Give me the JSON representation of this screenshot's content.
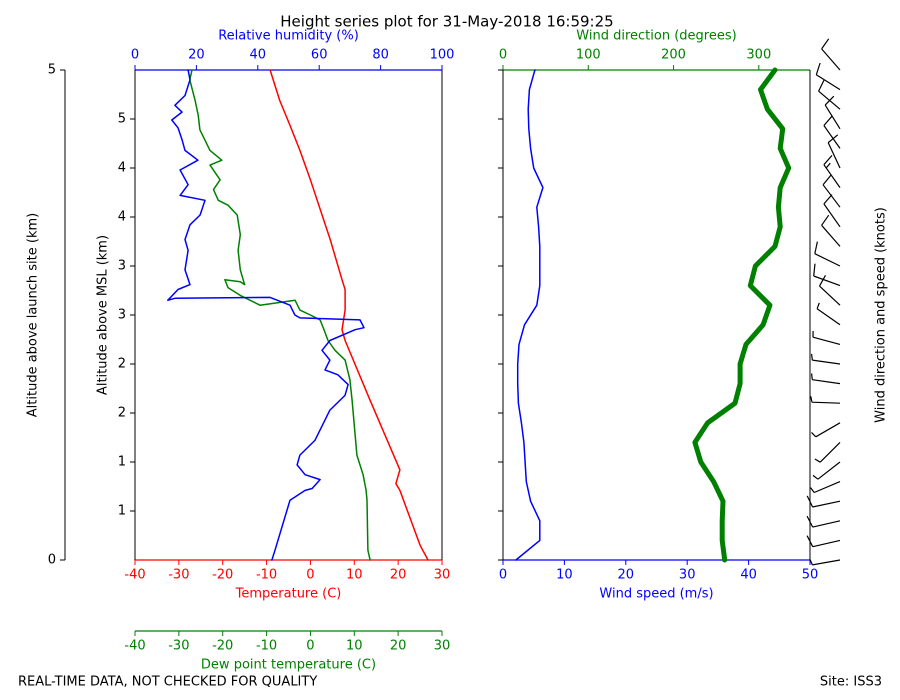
{
  "title": "Height series plot for 31-May-2018 16:59:25",
  "footer_left": "REAL-TIME DATA, NOT CHECKED FOR QUALITY",
  "footer_right": "Site: ISS3",
  "chart_data": [
    {
      "type": "line",
      "ylabel_outer": "Altitude above launch site (km)",
      "ylim": [
        0,
        5
      ],
      "yticks": [
        0,
        5
      ],
      "ylabel": "Altitude above MSL (km)",
      "msl_yticks": [
        {
          "value": 0.5,
          "label": "1"
        },
        {
          "value": 1,
          "label": "1"
        },
        {
          "value": 1.5,
          "label": "2"
        },
        {
          "value": 2,
          "label": "2"
        },
        {
          "value": 2.5,
          "label": "3"
        },
        {
          "value": 3,
          "label": "3"
        },
        {
          "value": 3.5,
          "label": "4"
        },
        {
          "value": 4,
          "label": "4"
        },
        {
          "value": 4.5,
          "label": "5"
        }
      ],
      "xlabel": "Temperature (C)",
      "xlim": [
        -40,
        30
      ],
      "xticks": [
        -40,
        -30,
        -20,
        -10,
        0,
        10,
        20,
        30
      ],
      "xcolor": "#ff0000",
      "x2label": "Relative humidity (%)",
      "x2lim": [
        0,
        100
      ],
      "x2ticks": [
        0,
        20,
        40,
        60,
        80,
        100
      ],
      "x2color": "#0000ff",
      "x3label": "Dew point temperature (C)",
      "x3lim": [
        -40,
        30
      ],
      "x3ticks": [
        -40,
        -30,
        -20,
        -10,
        0,
        10,
        20,
        30
      ],
      "x3color": "#008000",
      "series": [
        {
          "color": "#ff0000",
          "axis": "x",
          "values": [
            26.8,
            25,
            20.4,
            19.5,
            20.4,
            13.6,
            7.9,
            7.2,
            7.9,
            7.9,
            7.2,
            4.5,
            0,
            -2.4,
            -4.7,
            -7,
            -9.2
          ],
          "altitude": [
            0,
            0.15,
            0.71,
            0.78,
            0.92,
            1.63,
            2.24,
            2.35,
            2.55,
            2.76,
            2.86,
            3.27,
            3.88,
            4.18,
            4.44,
            4.69,
            5
          ]
        },
        {
          "color": "#008000",
          "axis": "x3",
          "values": [
            13.6,
            13.1,
            12.9,
            12.7,
            12,
            10.6,
            9.5,
            9,
            7.9,
            5.6,
            4,
            3.1,
            2.2,
            0,
            -2.4,
            -3.5,
            -11.5,
            -16,
            -18.8,
            -19.5,
            -16,
            -15,
            -16,
            -16.5,
            -16,
            -16.7,
            -18.8,
            -21,
            -22.1,
            -20.6,
            -22.9,
            -20.2,
            -22.9,
            -25.2,
            -25.6,
            -26.3,
            -27.5,
            -27
          ],
          "altitude": [
            0,
            0.1,
            0.61,
            0.71,
            0.87,
            1.07,
            1.63,
            1.84,
            2.04,
            2.14,
            2.24,
            2.35,
            2.45,
            2.5,
            2.55,
            2.65,
            2.6,
            2.7,
            2.78,
            2.86,
            2.84,
            2.81,
            2.96,
            3.16,
            3.32,
            3.52,
            3.62,
            3.67,
            3.78,
            3.88,
            4.03,
            4.08,
            4.18,
            4.39,
            4.54,
            4.69,
            4.9,
            5
          ]
        },
        {
          "color": "#0000ff",
          "axis": "x2",
          "values": [
            44.6,
            45.6,
            50.5,
            55.4,
            57.7,
            60.3,
            55.4,
            52.8,
            53.7,
            58.6,
            63.5,
            68.4,
            69.4,
            66.1,
            61.9,
            63.5,
            60.9,
            63.5,
            71.7,
            74.6,
            73.3,
            53.7,
            52.1,
            50.5,
            44,
            13,
            10.7,
            14,
            17.9,
            16.3,
            17.3,
            16.3,
            17.9,
            21.2,
            22.8,
            14.7,
            17.3,
            14.7,
            20.5,
            16.3,
            15.3,
            14,
            12,
            15.3,
            13,
            16.3,
            17.9,
            17.3
          ],
          "altitude": [
            0,
            0.1,
            0.61,
            0.71,
            0.73,
            0.82,
            0.87,
            0.97,
            1.07,
            1.22,
            1.53,
            1.68,
            1.79,
            1.89,
            1.94,
            2.04,
            2.14,
            2.24,
            2.35,
            2.37,
            2.45,
            2.47,
            2.5,
            2.6,
            2.68,
            2.67,
            2.65,
            2.76,
            2.81,
            2.96,
            3.16,
            3.27,
            3.42,
            3.52,
            3.67,
            3.72,
            3.83,
            3.98,
            4.08,
            4.18,
            4.29,
            4.41,
            4.49,
            4.57,
            4.64,
            4.74,
            4.9,
            5
          ]
        }
      ]
    },
    {
      "type": "line",
      "ylim": [
        0,
        5
      ],
      "yticks": [
        0,
        0.5,
        1,
        1.5,
        2,
        2.5,
        3,
        3.5,
        4,
        4.5,
        5
      ],
      "xlabel": "Wind speed (m/s)",
      "xlim": [
        0,
        50
      ],
      "xticks": [
        0,
        10,
        20,
        30,
        40,
        50
      ],
      "xcolor": "#0000ff",
      "x2label": "Wind direction (degrees)",
      "x2lim": [
        0,
        360
      ],
      "x2ticks": [
        0,
        100,
        200,
        300
      ],
      "x2color": "#008000",
      "barb_label": "Wind direction and speed (knots)",
      "altitude": [
        0,
        0.2,
        0.4,
        0.6,
        0.8,
        1.0,
        1.2,
        1.4,
        1.6,
        1.8,
        2.0,
        2.2,
        2.4,
        2.6,
        2.8,
        3.0,
        3.2,
        3.4,
        3.6,
        3.8,
        4.0,
        4.2,
        4.4,
        4.6,
        4.8,
        5.0
      ],
      "series": [
        {
          "color": "#0000ff",
          "axis": "x",
          "width": 1.5,
          "values": [
            2.1,
            6,
            6,
            4.5,
            3.8,
            3.6,
            3.4,
            3,
            2.5,
            2.4,
            2.4,
            2.6,
            3.5,
            5.5,
            6,
            6,
            6,
            5.8,
            5.5,
            6.5,
            5,
            4.5,
            4.2,
            4.1,
            4.3,
            5.2
          ]
        },
        {
          "color": "#008000",
          "axis": "x2",
          "width": 5,
          "values": [
            260,
            257,
            257,
            258,
            247,
            232,
            225,
            240,
            272,
            278,
            278,
            285,
            305,
            313,
            290,
            296,
            319,
            325,
            323,
            325,
            335,
            325,
            328,
            310,
            302,
            319
          ]
        }
      ]
    }
  ]
}
